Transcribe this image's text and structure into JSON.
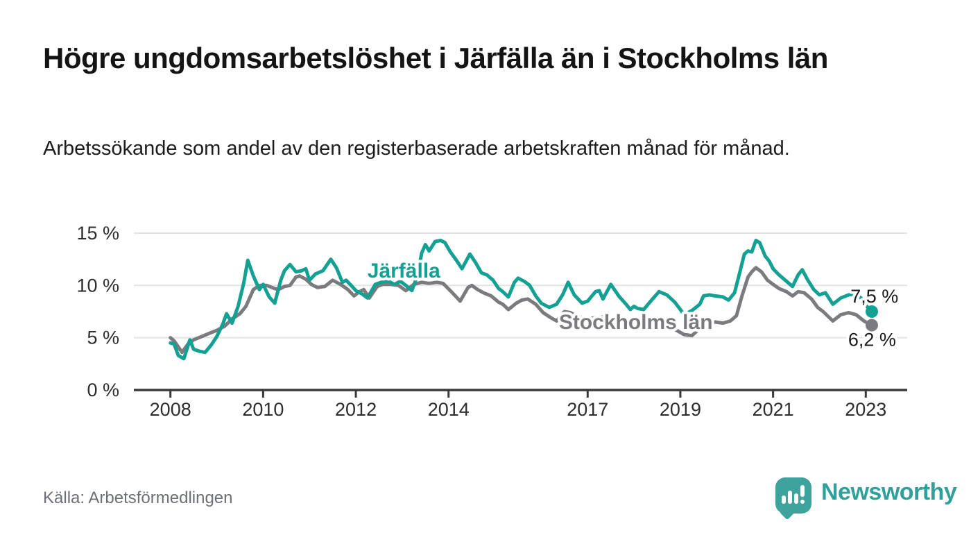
{
  "header": {
    "title": "Högre ungdomsarbetslöshet i Järfälla än i Stockholms län",
    "subtitle": "Arbetssökande som andel av den registerbaserade arbetskraften månad för månad."
  },
  "footer": {
    "source": "Källa: Arbetsförmedlingen",
    "brand": "Newsworthy"
  },
  "colors": {
    "jarfalla": "#14a093",
    "stockholm": "#7b7b7f",
    "axis": "#3a3a3a",
    "grid": "#e3e3e3",
    "tick_text": "#2d2d2d",
    "annotation_text": "#1a1a1a",
    "brand_teal": "#31a09a"
  },
  "chart_data": {
    "type": "line",
    "unit": "%",
    "grid": true,
    "x_range": [
      2007.85,
      2023.35
    ],
    "y_range": [
      0,
      15.5
    ],
    "y_ticks": [
      {
        "value": 0,
        "label": "0 %"
      },
      {
        "value": 5,
        "label": "5 %"
      },
      {
        "value": 10,
        "label": "10 %"
      },
      {
        "value": 15,
        "label": "15 %"
      }
    ],
    "x_ticks": [
      {
        "value": 2008,
        "label": "2008"
      },
      {
        "value": 2010,
        "label": "2010"
      },
      {
        "value": 2012,
        "label": "2012"
      },
      {
        "value": 2014,
        "label": "2014"
      },
      {
        "value": 2017,
        "label": "2017"
      },
      {
        "value": 2019,
        "label": "2019"
      },
      {
        "value": 2021,
        "label": "2021"
      },
      {
        "value": 2023,
        "label": "2023"
      }
    ],
    "series": [
      {
        "name": "Stockholms län",
        "color": "#7b7b7f",
        "end_label": "6,2 %",
        "end_value": 6.2,
        "points": [
          [
            2008.0,
            5.0
          ],
          [
            2008.08,
            4.7
          ],
          [
            2008.25,
            3.6
          ],
          [
            2008.38,
            4.4
          ],
          [
            2008.5,
            4.8
          ],
          [
            2008.67,
            5.1
          ],
          [
            2008.83,
            5.4
          ],
          [
            2009.0,
            5.7
          ],
          [
            2009.17,
            6.1
          ],
          [
            2009.33,
            6.8
          ],
          [
            2009.5,
            7.3
          ],
          [
            2009.63,
            8.0
          ],
          [
            2009.79,
            9.6
          ],
          [
            2009.92,
            10.0
          ],
          [
            2010.08,
            10.0
          ],
          [
            2010.25,
            9.7
          ],
          [
            2010.33,
            9.6
          ],
          [
            2010.46,
            9.9
          ],
          [
            2010.58,
            10.0
          ],
          [
            2010.71,
            10.8
          ],
          [
            2010.79,
            10.9
          ],
          [
            2010.92,
            10.6
          ],
          [
            2011.04,
            10.1
          ],
          [
            2011.17,
            9.8
          ],
          [
            2011.33,
            9.9
          ],
          [
            2011.5,
            10.5
          ],
          [
            2011.67,
            10.1
          ],
          [
            2011.83,
            9.6
          ],
          [
            2011.96,
            9.0
          ],
          [
            2012.08,
            9.4
          ],
          [
            2012.17,
            9.6
          ],
          [
            2012.29,
            8.8
          ],
          [
            2012.46,
            9.9
          ],
          [
            2012.58,
            10.1
          ],
          [
            2012.75,
            10.1
          ],
          [
            2012.92,
            10.0
          ],
          [
            2013.08,
            9.5
          ],
          [
            2013.25,
            10.1
          ],
          [
            2013.42,
            10.3
          ],
          [
            2013.58,
            10.2
          ],
          [
            2013.75,
            10.3
          ],
          [
            2013.88,
            10.2
          ],
          [
            2014.08,
            9.3
          ],
          [
            2014.25,
            8.5
          ],
          [
            2014.42,
            9.8
          ],
          [
            2014.5,
            10.0
          ],
          [
            2014.63,
            9.6
          ],
          [
            2014.75,
            9.3
          ],
          [
            2014.92,
            9.0
          ],
          [
            2015.08,
            8.4
          ],
          [
            2015.17,
            8.2
          ],
          [
            2015.29,
            7.7
          ],
          [
            2015.46,
            8.3
          ],
          [
            2015.58,
            8.6
          ],
          [
            2015.71,
            8.7
          ],
          [
            2015.88,
            8.2
          ],
          [
            2016.04,
            7.4
          ],
          [
            2016.21,
            6.9
          ],
          [
            2016.33,
            6.6
          ],
          [
            2016.5,
            7.5
          ],
          [
            2016.63,
            7.4
          ],
          [
            2016.79,
            7.0
          ],
          [
            2016.96,
            6.8
          ],
          [
            2017.17,
            6.9
          ],
          [
            2017.38,
            7.0
          ],
          [
            2017.58,
            6.7
          ],
          [
            2017.79,
            6.4
          ],
          [
            2017.96,
            6.2
          ],
          [
            2018.13,
            6.0
          ],
          [
            2018.33,
            6.2
          ],
          [
            2018.54,
            6.3
          ],
          [
            2018.75,
            6.0
          ],
          [
            2018.92,
            5.7
          ],
          [
            2019.08,
            5.3
          ],
          [
            2019.25,
            5.2
          ],
          [
            2019.42,
            5.9
          ],
          [
            2019.58,
            6.3
          ],
          [
            2019.75,
            6.5
          ],
          [
            2019.92,
            6.4
          ],
          [
            2020.08,
            6.6
          ],
          [
            2020.21,
            7.1
          ],
          [
            2020.33,
            9.0
          ],
          [
            2020.46,
            10.8
          ],
          [
            2020.54,
            11.3
          ],
          [
            2020.63,
            11.7
          ],
          [
            2020.75,
            11.3
          ],
          [
            2020.88,
            10.5
          ],
          [
            2021.0,
            10.1
          ],
          [
            2021.13,
            9.7
          ],
          [
            2021.29,
            9.4
          ],
          [
            2021.42,
            9.0
          ],
          [
            2021.54,
            9.4
          ],
          [
            2021.67,
            9.3
          ],
          [
            2021.83,
            8.7
          ],
          [
            2021.96,
            7.9
          ],
          [
            2022.08,
            7.5
          ],
          [
            2022.29,
            6.6
          ],
          [
            2022.46,
            7.2
          ],
          [
            2022.63,
            7.4
          ],
          [
            2022.79,
            7.2
          ],
          [
            2022.96,
            6.6
          ],
          [
            2023.13,
            6.2
          ]
        ]
      },
      {
        "name": "Järfälla",
        "color": "#14a093",
        "end_label": "7,5 %",
        "end_value": 7.5,
        "points": [
          [
            2008.0,
            4.5
          ],
          [
            2008.08,
            4.4
          ],
          [
            2008.17,
            3.3
          ],
          [
            2008.29,
            3.0
          ],
          [
            2008.42,
            4.8
          ],
          [
            2008.5,
            3.9
          ],
          [
            2008.63,
            3.7
          ],
          [
            2008.75,
            3.6
          ],
          [
            2008.88,
            4.3
          ],
          [
            2009.0,
            5.1
          ],
          [
            2009.13,
            6.3
          ],
          [
            2009.21,
            7.3
          ],
          [
            2009.33,
            6.4
          ],
          [
            2009.46,
            8.0
          ],
          [
            2009.58,
            10.2
          ],
          [
            2009.67,
            12.4
          ],
          [
            2009.79,
            10.9
          ],
          [
            2009.92,
            9.6
          ],
          [
            2010.0,
            10.1
          ],
          [
            2010.13,
            8.9
          ],
          [
            2010.25,
            8.3
          ],
          [
            2010.38,
            10.5
          ],
          [
            2010.46,
            11.4
          ],
          [
            2010.58,
            12.0
          ],
          [
            2010.71,
            11.3
          ],
          [
            2010.83,
            11.4
          ],
          [
            2010.92,
            11.6
          ],
          [
            2011.0,
            10.5
          ],
          [
            2011.13,
            11.1
          ],
          [
            2011.29,
            11.4
          ],
          [
            2011.46,
            12.5
          ],
          [
            2011.58,
            11.7
          ],
          [
            2011.71,
            10.3
          ],
          [
            2011.79,
            10.5
          ],
          [
            2011.92,
            9.9
          ],
          [
            2012.0,
            9.5
          ],
          [
            2012.13,
            9.2
          ],
          [
            2012.25,
            8.8
          ],
          [
            2012.42,
            10.1
          ],
          [
            2012.54,
            10.3
          ],
          [
            2012.71,
            10.4
          ],
          [
            2012.83,
            10.1
          ],
          [
            2012.96,
            10.4
          ],
          [
            2013.08,
            10.0
          ],
          [
            2013.21,
            9.5
          ],
          [
            2013.33,
            11.0
          ],
          [
            2013.42,
            13.1
          ],
          [
            2013.5,
            13.9
          ],
          [
            2013.58,
            13.3
          ],
          [
            2013.71,
            14.2
          ],
          [
            2013.83,
            14.3
          ],
          [
            2013.92,
            14.1
          ],
          [
            2014.04,
            13.2
          ],
          [
            2014.17,
            12.4
          ],
          [
            2014.29,
            11.6
          ],
          [
            2014.46,
            13.0
          ],
          [
            2014.58,
            12.2
          ],
          [
            2014.71,
            11.2
          ],
          [
            2014.83,
            11.0
          ],
          [
            2014.96,
            10.5
          ],
          [
            2015.08,
            9.7
          ],
          [
            2015.17,
            9.4
          ],
          [
            2015.29,
            8.9
          ],
          [
            2015.42,
            10.3
          ],
          [
            2015.5,
            10.7
          ],
          [
            2015.63,
            10.4
          ],
          [
            2015.75,
            10.0
          ],
          [
            2015.88,
            9.0
          ],
          [
            2016.0,
            8.3
          ],
          [
            2016.17,
            7.9
          ],
          [
            2016.33,
            8.2
          ],
          [
            2016.46,
            9.1
          ],
          [
            2016.58,
            10.3
          ],
          [
            2016.71,
            9.1
          ],
          [
            2016.88,
            8.3
          ],
          [
            2017.0,
            8.5
          ],
          [
            2017.17,
            9.4
          ],
          [
            2017.25,
            9.5
          ],
          [
            2017.33,
            8.7
          ],
          [
            2017.5,
            10.1
          ],
          [
            2017.67,
            9.0
          ],
          [
            2017.83,
            8.2
          ],
          [
            2017.92,
            7.7
          ],
          [
            2018.0,
            8.0
          ],
          [
            2018.08,
            7.8
          ],
          [
            2018.21,
            7.7
          ],
          [
            2018.38,
            8.6
          ],
          [
            2018.54,
            9.4
          ],
          [
            2018.71,
            9.1
          ],
          [
            2018.88,
            8.4
          ],
          [
            2019.0,
            7.7
          ],
          [
            2019.08,
            7.2
          ],
          [
            2019.25,
            7.6
          ],
          [
            2019.42,
            8.2
          ],
          [
            2019.5,
            9.0
          ],
          [
            2019.63,
            9.1
          ],
          [
            2019.75,
            9.0
          ],
          [
            2019.92,
            8.9
          ],
          [
            2020.04,
            8.6
          ],
          [
            2020.17,
            9.3
          ],
          [
            2020.29,
            11.4
          ],
          [
            2020.38,
            13.0
          ],
          [
            2020.46,
            13.3
          ],
          [
            2020.54,
            13.2
          ],
          [
            2020.63,
            14.3
          ],
          [
            2020.71,
            14.1
          ],
          [
            2020.83,
            12.8
          ],
          [
            2020.92,
            12.3
          ],
          [
            2021.0,
            11.6
          ],
          [
            2021.13,
            11.0
          ],
          [
            2021.29,
            10.4
          ],
          [
            2021.42,
            9.9
          ],
          [
            2021.54,
            11.0
          ],
          [
            2021.63,
            11.5
          ],
          [
            2021.75,
            10.5
          ],
          [
            2021.88,
            9.6
          ],
          [
            2022.0,
            9.1
          ],
          [
            2022.13,
            9.3
          ],
          [
            2022.29,
            8.2
          ],
          [
            2022.46,
            8.8
          ],
          [
            2022.63,
            9.1
          ],
          [
            2022.79,
            9.2
          ],
          [
            2022.92,
            8.7
          ],
          [
            2023.0,
            8.1
          ],
          [
            2023.13,
            7.5
          ]
        ]
      }
    ],
    "annotations": [
      {
        "text": "Järfälla",
        "x": 2012.25,
        "y": 10.75,
        "color": "#14a093",
        "size": 30,
        "bold": true
      },
      {
        "text": "Stockholms län",
        "x": 2016.38,
        "y": 5.85,
        "color": "#7b7b7f",
        "size": 30,
        "bold": true
      },
      {
        "text": "7,5 %",
        "x": 2022.67,
        "y": 8.35,
        "color": "#1a1a1a",
        "size": 27,
        "bold": false
      },
      {
        "text": "6,2 %",
        "x": 2022.62,
        "y": 4.2,
        "color": "#1a1a1a",
        "size": 27,
        "bold": false
      }
    ]
  }
}
